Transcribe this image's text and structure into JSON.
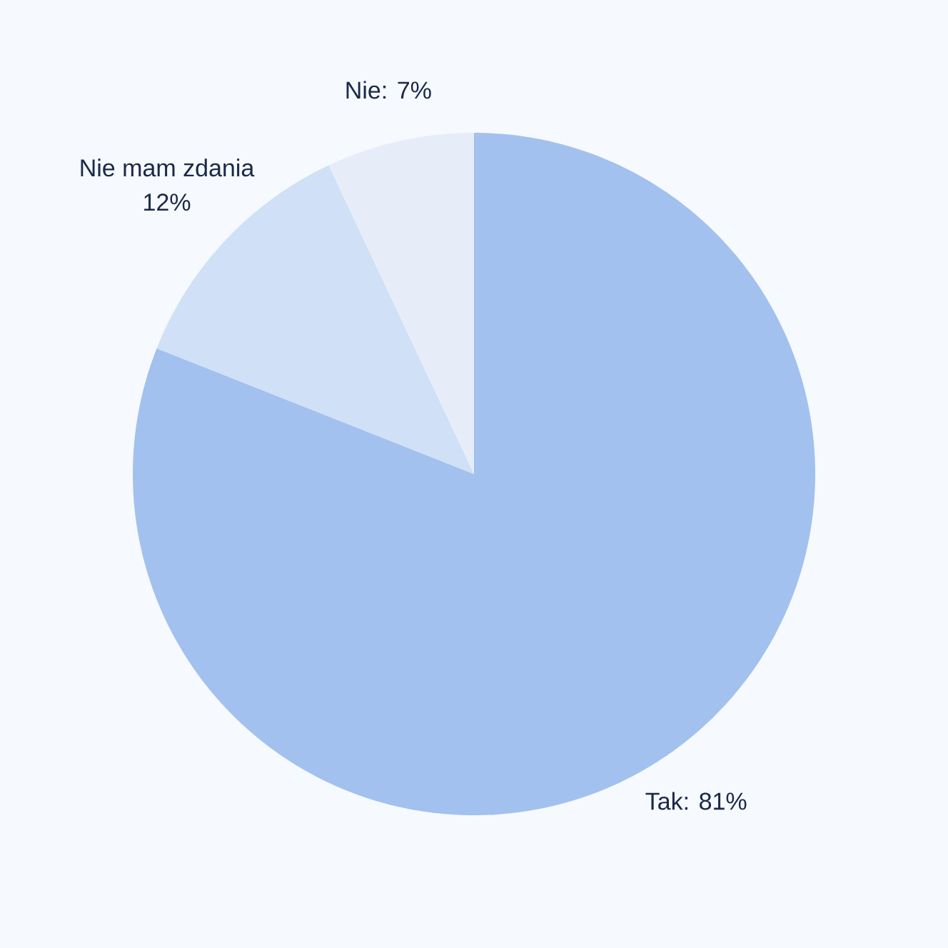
{
  "chart_data": {
    "type": "pie",
    "categories": [
      "Tak: 81%",
      "Nie mam zdania 12%",
      "Nie: 7%"
    ],
    "values": [
      81,
      12,
      7
    ],
    "colors": [
      "#a3c1ee",
      "#d0e0f6",
      "#e6edf9"
    ]
  }
}
